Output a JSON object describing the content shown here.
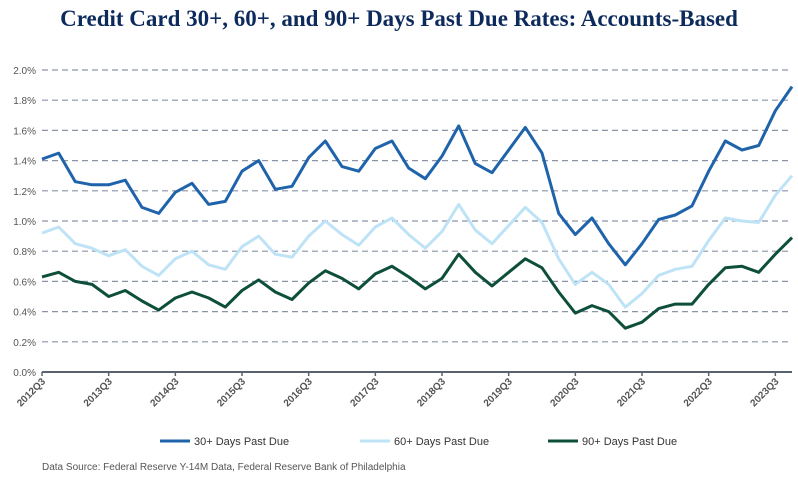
{
  "chart_data": {
    "type": "line",
    "title": "Credit Card 30+, 60+, and 90+ Days Past Due Rates: Accounts-Based",
    "xlabel": "",
    "ylabel": "",
    "ylim": [
      0,
      2.0
    ],
    "yticks": [
      "0.0%",
      "0.2%",
      "0.4%",
      "0.6%",
      "0.8%",
      "1.0%",
      "1.2%",
      "1.4%",
      "1.6%",
      "1.8%",
      "2.0%"
    ],
    "grid": true,
    "legend": "bottom",
    "x": [
      "2012Q3",
      "2012Q4",
      "2013Q1",
      "2013Q2",
      "2013Q3",
      "2013Q4",
      "2014Q1",
      "2014Q2",
      "2014Q3",
      "2014Q4",
      "2015Q1",
      "2015Q2",
      "2015Q3",
      "2015Q4",
      "2016Q1",
      "2016Q2",
      "2016Q3",
      "2016Q4",
      "2017Q1",
      "2017Q2",
      "2017Q3",
      "2017Q4",
      "2018Q1",
      "2018Q2",
      "2018Q3",
      "2018Q4",
      "2019Q1",
      "2019Q2",
      "2019Q3",
      "2019Q4",
      "2020Q1",
      "2020Q2",
      "2020Q3",
      "2020Q4",
      "2021Q1",
      "2021Q2",
      "2021Q3",
      "2021Q4",
      "2022Q1",
      "2022Q2",
      "2022Q3",
      "2022Q4",
      "2023Q1",
      "2023Q2",
      "2023Q3",
      "2023Q4"
    ],
    "xticks": [
      "2012Q3",
      "2013Q3",
      "2014Q3",
      "2015Q3",
      "2016Q3",
      "2017Q3",
      "2018Q3",
      "2019Q3",
      "2020Q3",
      "2021Q3",
      "2022Q3",
      "2023Q3"
    ],
    "series": [
      {
        "name": "30+ Days Past Due",
        "color": "#1f63ab",
        "values": [
          1.41,
          1.45,
          1.26,
          1.24,
          1.24,
          1.27,
          1.09,
          1.05,
          1.19,
          1.25,
          1.11,
          1.13,
          1.33,
          1.4,
          1.21,
          1.23,
          1.42,
          1.53,
          1.36,
          1.33,
          1.48,
          1.53,
          1.35,
          1.28,
          1.43,
          1.63,
          1.38,
          1.32,
          1.47,
          1.62,
          1.45,
          1.05,
          0.91,
          1.02,
          0.85,
          0.71,
          0.85,
          1.01,
          1.04,
          1.1,
          1.33,
          1.53,
          1.47,
          1.5,
          1.73,
          1.89
        ]
      },
      {
        "name": "60+ Days Past Due",
        "color": "#bfe3f6",
        "values": [
          0.92,
          0.96,
          0.85,
          0.82,
          0.77,
          0.81,
          0.7,
          0.64,
          0.75,
          0.8,
          0.71,
          0.68,
          0.83,
          0.9,
          0.78,
          0.76,
          0.9,
          1.0,
          0.91,
          0.84,
          0.96,
          1.02,
          0.91,
          0.82,
          0.93,
          1.11,
          0.94,
          0.85,
          0.97,
          1.09,
          0.99,
          0.75,
          0.58,
          0.66,
          0.58,
          0.43,
          0.52,
          0.64,
          0.68,
          0.7,
          0.87,
          1.02,
          1.0,
          0.99,
          1.17,
          1.3
        ]
      },
      {
        "name": "90+ Days Past Due",
        "color": "#0e4f3b",
        "values": [
          0.63,
          0.66,
          0.6,
          0.58,
          0.5,
          0.54,
          0.47,
          0.41,
          0.49,
          0.53,
          0.49,
          0.43,
          0.54,
          0.61,
          0.53,
          0.48,
          0.59,
          0.67,
          0.62,
          0.55,
          0.65,
          0.7,
          0.63,
          0.55,
          0.62,
          0.78,
          0.66,
          0.57,
          0.66,
          0.75,
          0.69,
          0.53,
          0.39,
          0.44,
          0.4,
          0.29,
          0.33,
          0.42,
          0.45,
          0.45,
          0.58,
          0.69,
          0.7,
          0.66,
          0.78,
          0.89
        ]
      }
    ],
    "source": "Data Source: Federal Reserve Y-14M Data, Federal Reserve Bank of Philadelphia"
  }
}
